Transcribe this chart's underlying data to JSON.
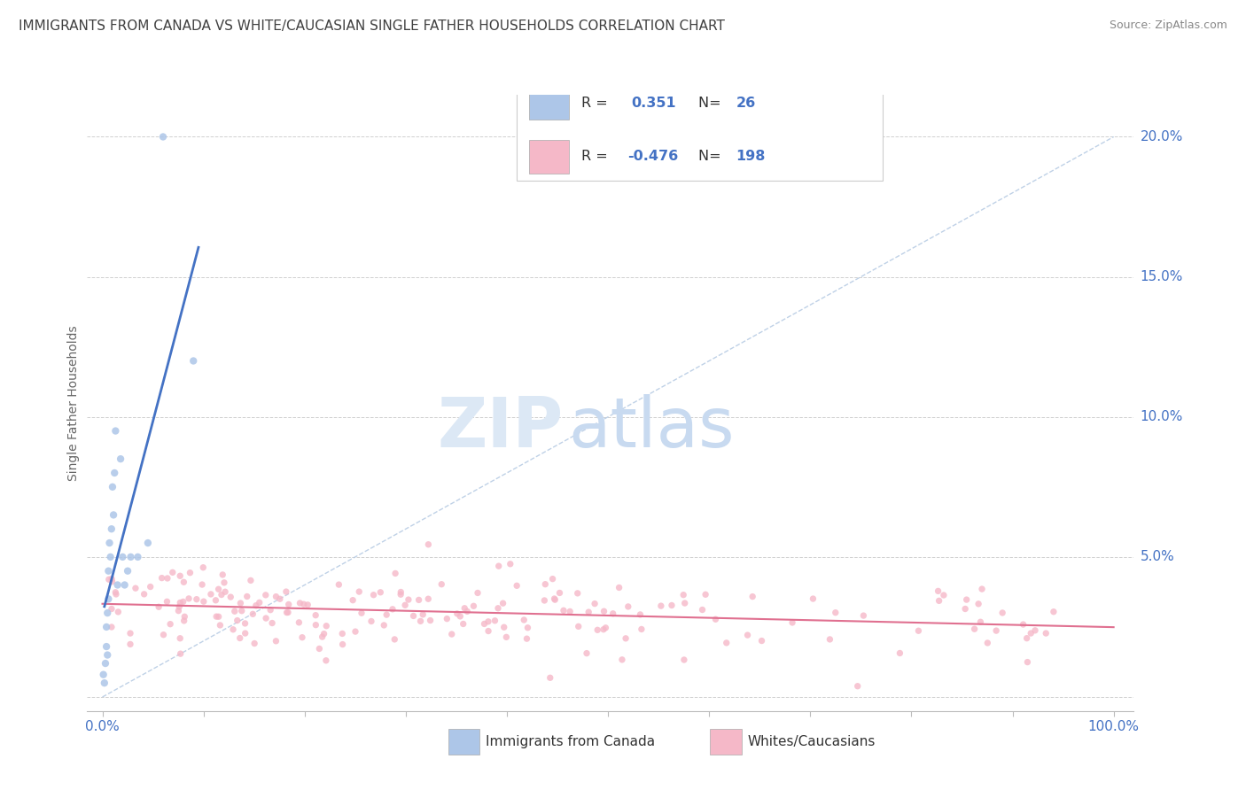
{
  "title": "IMMIGRANTS FROM CANADA VS WHITE/CAUCASIAN SINGLE FATHER HOUSEHOLDS CORRELATION CHART",
  "source": "Source: ZipAtlas.com",
  "ylabel": "Single Father Households",
  "blue_color": "#adc6e8",
  "pink_color": "#f5b8c8",
  "blue_line_color": "#4472c4",
  "pink_line_color": "#e07090",
  "diagonal_color": "#b8cce4",
  "watermark_zip_color": "#dce8f5",
  "watermark_atlas_color": "#c8daf0",
  "background_color": "#ffffff",
  "grid_color": "#d0d0d0",
  "title_color": "#404040",
  "axis_label_color": "#4472c4",
  "source_color": "#888888",
  "r1": "0.351",
  "n1": "26",
  "r2": "-0.476",
  "n2": "198",
  "legend_text_color": "#333333",
  "legend_value_color": "#4472c4"
}
